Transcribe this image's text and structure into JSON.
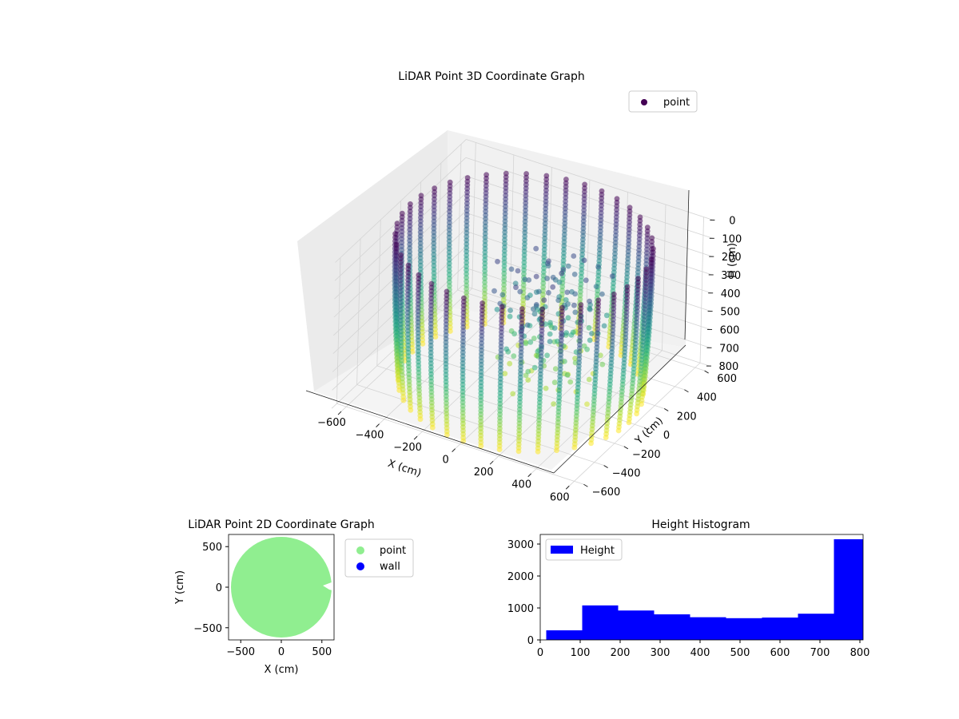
{
  "chart_data": [
    {
      "type": "scatter",
      "subtype": "3d",
      "title": "LiDAR Point 3D Coordinate Graph",
      "xlabel": "X (cm)",
      "ylabel": "Y (cm)",
      "zlabel": "H (cm)",
      "xticks": [
        "−600",
        "−400",
        "−200",
        "0",
        "200",
        "400",
        "600"
      ],
      "yticks": [
        "−600",
        "−400",
        "−200",
        "0",
        "200",
        "400",
        "600"
      ],
      "zticks": [
        "0",
        "100",
        "200",
        "300",
        "400",
        "500",
        "600",
        "700",
        "800"
      ],
      "xlim": [
        -650,
        650
      ],
      "ylim": [
        -650,
        650
      ],
      "zlim": [
        0,
        800
      ],
      "z_inverted": true,
      "colormap": "viridis",
      "grid": true,
      "legend": {
        "position": "upper-right",
        "entries": [
          {
            "label": "point",
            "color": "#440154"
          }
        ]
      },
      "series": [
        {
          "name": "point",
          "description_shape": "cylindrical wall of radius ~600 cm with vertical scan columns every ~9°; interior cluster of scattered points near one side",
          "wall_radius": 600,
          "column_count": 40,
          "height_range": [
            0,
            800
          ]
        }
      ]
    },
    {
      "type": "scatter",
      "title": "LiDAR Point 2D Coordinate Graph",
      "xlabel": "X (cm)",
      "ylabel": "Y (cm)",
      "xticks": [
        "−500",
        "0",
        "500"
      ],
      "yticks": [
        "−500",
        "0",
        "500"
      ],
      "xlim": [
        -650,
        650
      ],
      "ylim": [
        -650,
        650
      ],
      "grid": false,
      "legend": {
        "position": "outside-right",
        "entries": [
          {
            "label": "point",
            "color": "#90ee90"
          },
          {
            "label": "wall",
            "color": "#0000ff"
          }
        ]
      },
      "series": [
        {
          "name": "point",
          "color": "#90ee90",
          "region": "disc of radius ~620 cm with notch at x≈450..620, y≈-10..20"
        },
        {
          "name": "wall",
          "color": "#0000ff",
          "points": []
        }
      ]
    },
    {
      "type": "bar",
      "subtype": "histogram",
      "title": "Height Histogram",
      "xlabel": "",
      "ylabel": "",
      "xticks": [
        "0",
        "100",
        "200",
        "300",
        "400",
        "500",
        "600",
        "700",
        "800"
      ],
      "yticks": [
        "0",
        "1000",
        "2000",
        "3000"
      ],
      "xlim": [
        0,
        808
      ],
      "ylim": [
        0,
        3300
      ],
      "color": "#0000ff",
      "legend": {
        "position": "upper-left",
        "entries": [
          {
            "label": "Height",
            "color": "#0000ff"
          }
        ]
      },
      "bins": [
        {
          "x0": 15,
          "x1": 105,
          "count": 300
        },
        {
          "x0": 105,
          "x1": 195,
          "count": 1080
        },
        {
          "x0": 195,
          "x1": 285,
          "count": 920
        },
        {
          "x0": 285,
          "x1": 375,
          "count": 800
        },
        {
          "x0": 375,
          "x1": 465,
          "count": 710
        },
        {
          "x0": 465,
          "x1": 555,
          "count": 680
        },
        {
          "x0": 555,
          "x1": 645,
          "count": 700
        },
        {
          "x0": 645,
          "x1": 735,
          "count": 820
        },
        {
          "x0": 735,
          "x1": 808,
          "count": 3150
        }
      ]
    }
  ]
}
